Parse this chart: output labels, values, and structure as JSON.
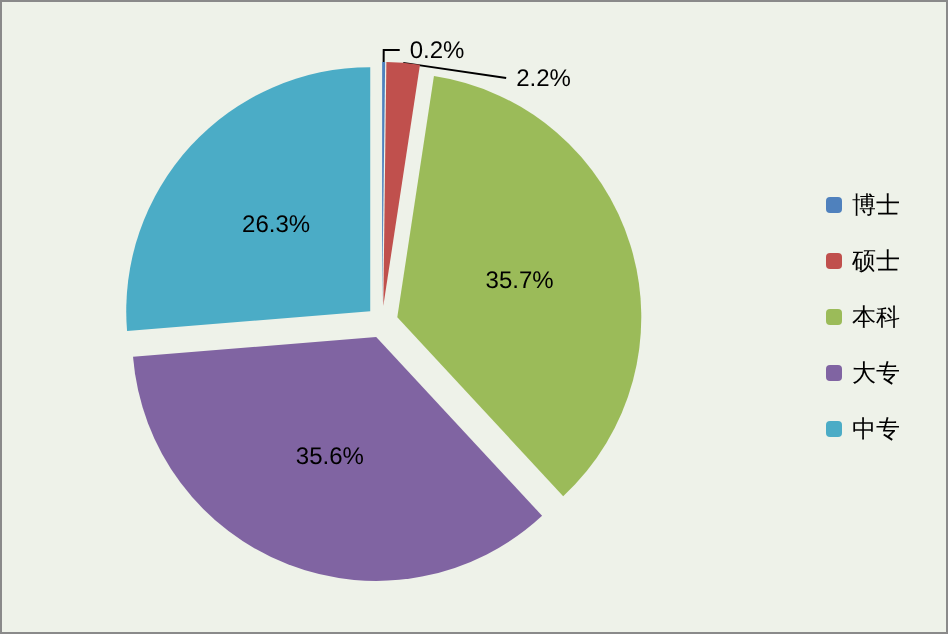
{
  "chart_data": {
    "type": "pie",
    "categories": [
      "博士",
      "硕士",
      "本科",
      "大专",
      "中专"
    ],
    "values": [
      0.2,
      2.2,
      35.7,
      35.6,
      26.3
    ],
    "colors": [
      "#4f81bd",
      "#c0504d",
      "#9bbb59",
      "#8064a2",
      "#4bacc6"
    ],
    "value_labels": [
      "0.2%",
      "2.2%",
      "35.7%",
      "35.6%",
      "26.3%"
    ],
    "legend": "right"
  }
}
